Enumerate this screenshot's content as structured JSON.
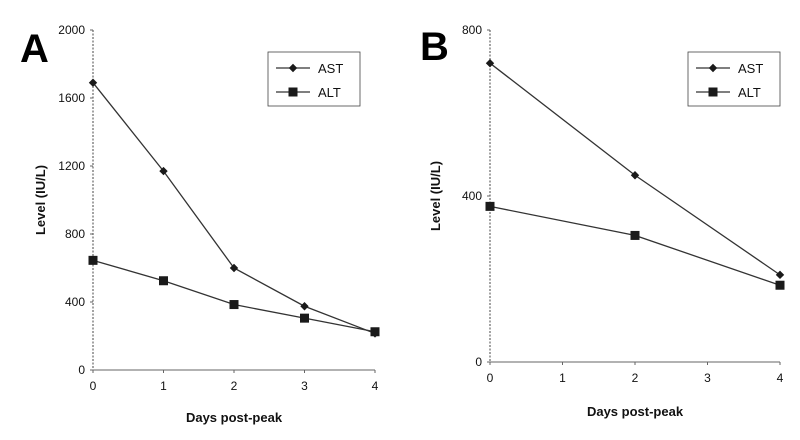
{
  "chart_data": [
    {
      "panel": "A",
      "type": "line",
      "x": [
        0,
        1,
        2,
        3,
        4
      ],
      "xticks": [
        "0",
        "1",
        "2",
        "3",
        "4"
      ],
      "yticks": [
        "0",
        "400",
        "800",
        "1200",
        "1600",
        "2000"
      ],
      "xlim": [
        0,
        4
      ],
      "ylim": [
        0,
        2000
      ],
      "xlabel": "Days post-peak",
      "ylabel": "Level (IU/L)",
      "legend_position": "top-right",
      "series": [
        {
          "name": "AST",
          "marker": "diamond",
          "values": [
            1690,
            1170,
            600,
            375,
            215
          ]
        },
        {
          "name": "ALT",
          "marker": "square",
          "values": [
            645,
            525,
            385,
            305,
            225
          ]
        }
      ]
    },
    {
      "panel": "B",
      "type": "line",
      "x": [
        0,
        2,
        4
      ],
      "xticks": [
        "0",
        "1",
        "2",
        "3",
        "4"
      ],
      "yticks": [
        "0",
        "400",
        "800"
      ],
      "xlim": [
        0,
        4
      ],
      "ylim": [
        0,
        800
      ],
      "xlabel": "Days post-peak",
      "ylabel": "Level (IU/L)",
      "legend_position": "top-right",
      "series": [
        {
          "name": "AST",
          "marker": "diamond",
          "values": [
            720,
            450,
            210
          ]
        },
        {
          "name": "ALT",
          "marker": "square",
          "values": [
            375,
            305,
            185
          ]
        }
      ]
    }
  ],
  "colors": {
    "line": "#333333",
    "marker": "#1a1a1a",
    "axis": "#666666"
  }
}
